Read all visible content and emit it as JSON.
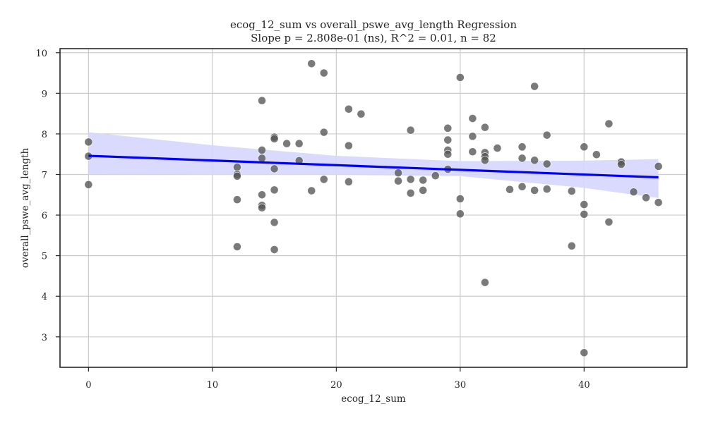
{
  "chart_data": {
    "type": "scatter",
    "title": "ecog_12_sum vs overall_pswe_avg_length Regression",
    "subtitle": "Slope p = 2.808e-01 (ns), R^2 = 0.01, n = 82",
    "xlabel": "ecog_12_sum",
    "ylabel": "overall_pswe_avg_length",
    "xlim": [
      -2.3,
      48.3
    ],
    "ylim": [
      2.25,
      10.1
    ],
    "xticks": [
      0,
      10,
      20,
      30,
      40
    ],
    "yticks": [
      3,
      4,
      5,
      6,
      7,
      8,
      9,
      10
    ],
    "grid": true,
    "points": [
      [
        0,
        7.8
      ],
      [
        0,
        7.45
      ],
      [
        0,
        6.75
      ],
      [
        12,
        7.18
      ],
      [
        12,
        7.0
      ],
      [
        12,
        6.96
      ],
      [
        12,
        6.38
      ],
      [
        12,
        5.22
      ],
      [
        14,
        8.82
      ],
      [
        14,
        7.6
      ],
      [
        14,
        7.4
      ],
      [
        14,
        6.5
      ],
      [
        14,
        6.24
      ],
      [
        14,
        6.18
      ],
      [
        15,
        7.92
      ],
      [
        15,
        7.88
      ],
      [
        15,
        7.14
      ],
      [
        15,
        6.62
      ],
      [
        15,
        5.82
      ],
      [
        15,
        5.15
      ],
      [
        16,
        7.76
      ],
      [
        17,
        7.76
      ],
      [
        17,
        7.34
      ],
      [
        18,
        9.73
      ],
      [
        18,
        6.6
      ],
      [
        19,
        9.5
      ],
      [
        19,
        8.04
      ],
      [
        19,
        6.88
      ],
      [
        21,
        8.61
      ],
      [
        21,
        7.71
      ],
      [
        21,
        6.82
      ],
      [
        22,
        8.49
      ],
      [
        25,
        7.04
      ],
      [
        25,
        6.84
      ],
      [
        26,
        8.09
      ],
      [
        26,
        6.88
      ],
      [
        26,
        6.54
      ],
      [
        27,
        6.86
      ],
      [
        27,
        6.61
      ],
      [
        28,
        6.97
      ],
      [
        29,
        8.14
      ],
      [
        29,
        7.85
      ],
      [
        29,
        7.6
      ],
      [
        29,
        7.5
      ],
      [
        29,
        7.13
      ],
      [
        30,
        9.39
      ],
      [
        30,
        6.4
      ],
      [
        30,
        6.03
      ],
      [
        31,
        8.38
      ],
      [
        31,
        7.94
      ],
      [
        31,
        7.56
      ],
      [
        32,
        8.16
      ],
      [
        32,
        7.54
      ],
      [
        32,
        7.44
      ],
      [
        32,
        7.35
      ],
      [
        32,
        4.34
      ],
      [
        33,
        7.65
      ],
      [
        34,
        6.63
      ],
      [
        35,
        7.68
      ],
      [
        35,
        7.4
      ],
      [
        35,
        6.7
      ],
      [
        36,
        9.17
      ],
      [
        36,
        7.35
      ],
      [
        36,
        6.61
      ],
      [
        37,
        7.97
      ],
      [
        37,
        7.26
      ],
      [
        37,
        6.64
      ],
      [
        39,
        6.59
      ],
      [
        39,
        5.24
      ],
      [
        40,
        7.68
      ],
      [
        40,
        6.26
      ],
      [
        40,
        6.02
      ],
      [
        40,
        2.61
      ],
      [
        41,
        7.49
      ],
      [
        42,
        8.25
      ],
      [
        42,
        5.83
      ],
      [
        43,
        7.31
      ],
      [
        43,
        7.25
      ],
      [
        44,
        6.57
      ],
      [
        45,
        6.43
      ],
      [
        46,
        7.2
      ],
      [
        46,
        6.31
      ]
    ],
    "regression": {
      "x": [
        0,
        46
      ],
      "y": [
        7.46,
        6.93
      ],
      "ci_upper": [
        [
          0,
          8.04
        ],
        [
          10,
          7.72
        ],
        [
          20,
          7.46
        ],
        [
          30,
          7.33
        ],
        [
          40,
          7.34
        ],
        [
          46,
          7.38
        ]
      ],
      "ci_lower": [
        [
          0,
          7.0
        ],
        [
          10,
          6.99
        ],
        [
          20,
          6.99
        ],
        [
          30,
          6.96
        ],
        [
          40,
          6.67
        ],
        [
          46,
          6.42
        ]
      ]
    },
    "colors": {
      "points": "#555555",
      "line": "#0000ff",
      "ci_band": "#d6d6ff",
      "grid": "#cccccc",
      "axes": "#262626"
    }
  }
}
